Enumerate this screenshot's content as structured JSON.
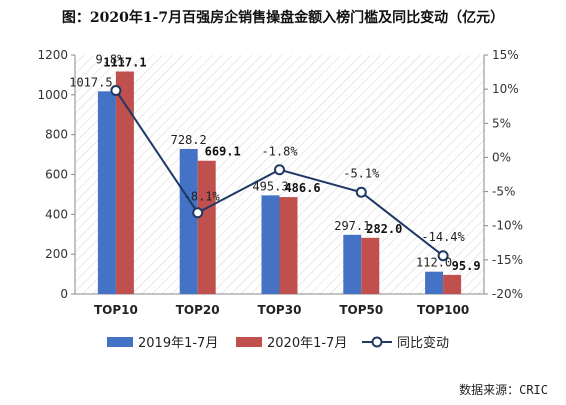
{
  "title": "图：2020年1-7月百强房企销售操盘金额入榜门槛及同比变动（亿元）",
  "source": "数据来源：CRIC",
  "chart_data": {
    "type": "bar",
    "categories": [
      "TOP10",
      "TOP20",
      "TOP30",
      "TOP50",
      "TOP100"
    ],
    "series": [
      {
        "name": "2019年1-7月",
        "type": "bar",
        "axis": "left",
        "color": "#4472C4",
        "values": [
          1017.5,
          728.2,
          495.3,
          297.1,
          112.0
        ],
        "labels": [
          "1017.5",
          "728.2",
          "495.3",
          "297.1",
          "112.0"
        ]
      },
      {
        "name": "2020年1-7月",
        "type": "bar",
        "axis": "left",
        "color": "#C0504D",
        "values": [
          1117.1,
          669.1,
          486.6,
          282.0,
          95.9
        ],
        "labels": [
          "1117.1",
          "669.1",
          "486.6",
          "282.0",
          "95.9"
        ]
      },
      {
        "name": "同比变动",
        "type": "line",
        "axis": "right",
        "color": "#1F3864",
        "values": [
          9.8,
          -8.1,
          -1.8,
          -5.1,
          -14.4
        ],
        "labels": [
          "9.8%",
          "-8.1%",
          "-1.8%",
          "-5.1%",
          "-14.4%"
        ]
      }
    ],
    "y_left": {
      "min": 0,
      "max": 1200,
      "ticks": [
        "0",
        "200",
        "400",
        "600",
        "800",
        "1000",
        "1200"
      ],
      "tick_values": [
        0,
        200,
        400,
        600,
        800,
        1000,
        1200
      ]
    },
    "y_right": {
      "min": -20,
      "max": 15,
      "ticks": [
        "-20%",
        "-15%",
        "-10%",
        "-5%",
        "0%",
        "5%",
        "10%",
        "15%"
      ],
      "tick_values": [
        -20,
        -15,
        -10,
        -5,
        0,
        5,
        10,
        15
      ]
    },
    "grid": false,
    "legend_position": "bottom"
  }
}
